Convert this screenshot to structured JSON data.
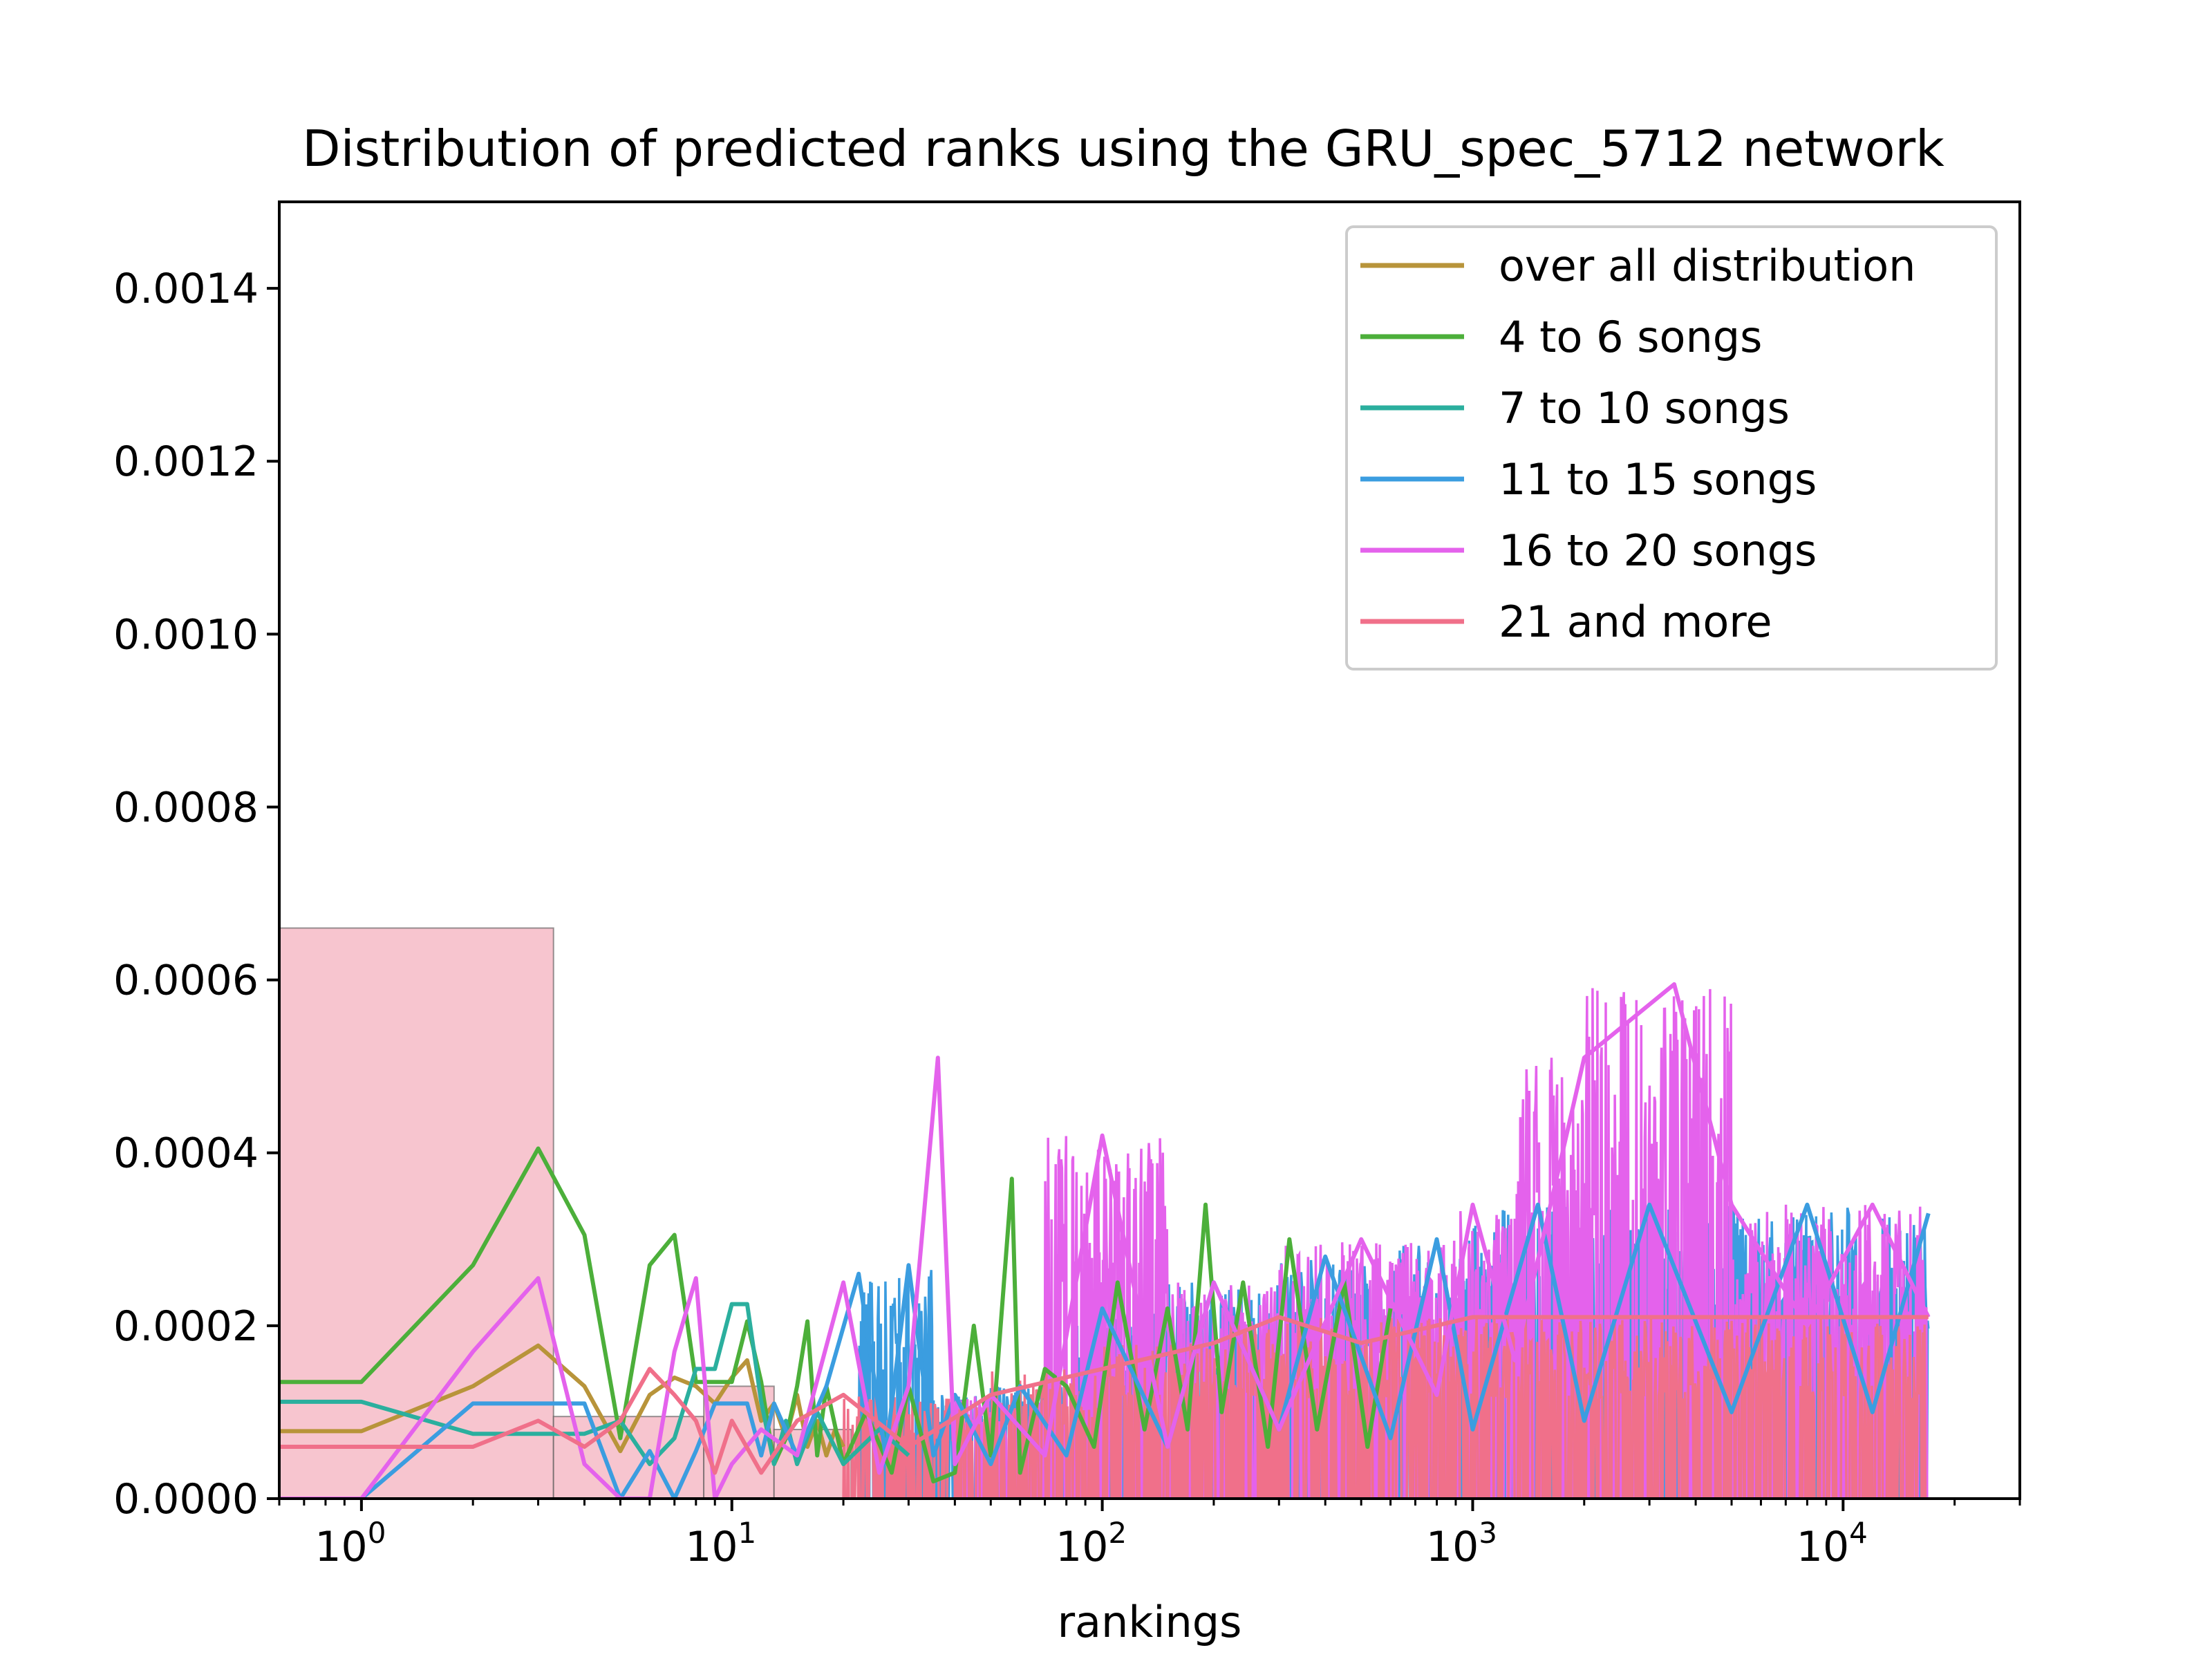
{
  "chart_data": {
    "type": "line",
    "title": "Distribution of predicted ranks using the GRU_spec_5712 network",
    "xlabel": "rankings",
    "ylabel": "",
    "xscale": "log",
    "xlim": [
      0.6,
      30000
    ],
    "ylim": [
      0,
      0.0015
    ],
    "yticks": [
      "0.0000",
      "0.0002",
      "0.0004",
      "0.0006",
      "0.0008",
      "0.0010",
      "0.0012",
      "0.0014"
    ],
    "xticks": [
      {
        "base": "10",
        "exp": "0"
      },
      {
        "base": "10",
        "exp": "1"
      },
      {
        "base": "10",
        "exp": "2"
      },
      {
        "base": "10",
        "exp": "3"
      },
      {
        "base": "10",
        "exp": "4"
      }
    ],
    "legend": {
      "location": "upper right"
    },
    "histogram": {
      "color": "#f7c5cf",
      "bins": [
        {
          "x0": 0.6,
          "x1": 3.3,
          "value": 0.00066
        },
        {
          "x0": 3.3,
          "x1": 8.4,
          "value": 9.5e-05
        },
        {
          "x0": 8.4,
          "x1": 13.0,
          "value": 0.00013
        },
        {
          "x0": 13.0,
          "x1": 21.0,
          "value": 8e-05
        }
      ]
    },
    "series": [
      {
        "name": "over all distribution",
        "color": "#b8943a",
        "x": [
          0.6,
          1,
          2,
          3,
          4,
          5,
          6,
          7,
          8,
          9,
          10,
          11,
          12,
          13,
          14,
          15,
          16,
          17,
          18,
          19,
          20
        ],
        "values": [
          7.8e-05,
          7.8e-05,
          0.00013,
          0.000177,
          0.00013,
          5.5e-05,
          0.00012,
          0.00014,
          0.00013,
          0.00011,
          0.00014,
          0.00016,
          9e-05,
          0.00011,
          7e-05,
          0.00012,
          6e-05,
          9e-05,
          5e-05,
          8e-05,
          6e-05
        ]
      },
      {
        "name": "4 to 6 songs",
        "color": "#4caf3a",
        "x": [
          0.6,
          1,
          2,
          3,
          4,
          5,
          6,
          7,
          8,
          9,
          10,
          11,
          12,
          13,
          14,
          15,
          16,
          17,
          18,
          20,
          23,
          27,
          30,
          35,
          40,
          45,
          50,
          57,
          60,
          70,
          80,
          95,
          110,
          130,
          150,
          170,
          190,
          210,
          240,
          280,
          320,
          380,
          450,
          520,
          600
        ],
        "values": [
          0.000135,
          0.000135,
          0.00027,
          0.000405,
          0.000305,
          7e-05,
          0.00027,
          0.000305,
          0.000135,
          0.000135,
          0.000135,
          0.000205,
          0.000135,
          4e-05,
          7e-05,
          0.00013,
          0.000205,
          5e-05,
          0.00013,
          4e-05,
          0.0001,
          3e-05,
          0.00013,
          2e-05,
          3e-05,
          0.0002,
          5e-05,
          0.00037,
          3e-05,
          0.00015,
          0.00013,
          6e-05,
          0.00025,
          8e-05,
          0.00022,
          8e-05,
          0.00034,
          0.0001,
          0.00025,
          6e-05,
          0.0003,
          8e-05,
          0.00025,
          6e-05,
          0.00022
        ]
      },
      {
        "name": "7 to 10 songs",
        "color": "#2baf9e",
        "x": [
          0.6,
          1,
          2,
          3,
          4,
          5,
          6,
          7,
          8,
          9,
          10,
          11,
          12,
          13,
          14,
          15,
          17,
          20,
          25,
          30
        ],
        "values": [
          0.000112,
          0.000112,
          7.5e-05,
          7.5e-05,
          7.5e-05,
          9e-05,
          4e-05,
          7e-05,
          0.00015,
          0.00015,
          0.000225,
          0.000225,
          0.000112,
          4e-05,
          9e-05,
          4e-05,
          0.0001,
          4e-05,
          8e-05,
          5e-05
        ]
      },
      {
        "name": "11 to 15 songs",
        "color": "#3b9de0",
        "x": [
          0.6,
          1,
          2,
          3,
          4,
          5,
          6,
          7,
          8,
          9,
          10,
          11,
          12,
          13,
          15,
          18,
          22,
          26,
          30,
          35,
          40,
          50,
          60,
          80,
          100,
          150,
          200,
          300,
          400,
          600,
          800,
          1000,
          1500,
          2000,
          3000,
          5000,
          8000,
          12000,
          17000
        ],
        "values": [
          0,
          0,
          0.00011,
          0.00011,
          0.00011,
          0,
          5.5e-05,
          0,
          5.5e-05,
          0.00011,
          0.00011,
          0.00011,
          5e-05,
          0.00011,
          5e-05,
          0.00013,
          0.00026,
          5e-05,
          0.00027,
          5e-05,
          0.00012,
          4e-05,
          0.00013,
          5e-05,
          0.00022,
          6e-05,
          0.00025,
          8e-05,
          0.00028,
          7e-05,
          0.0003,
          8e-05,
          0.00034,
          9e-05,
          0.00034,
          0.0001,
          0.00034,
          0.0001,
          0.00033
        ]
      },
      {
        "name": "16 to 20 songs",
        "color": "#e462ec",
        "x": [
          0.6,
          1,
          2,
          3,
          4,
          5,
          6,
          7,
          8,
          9,
          10,
          12,
          15,
          20,
          25,
          30,
          36,
          40,
          50,
          70,
          100,
          150,
          200,
          300,
          500,
          800,
          1000,
          1300,
          2000,
          3500,
          5000,
          8000,
          12000,
          17000
        ],
        "values": [
          0,
          0,
          0.00017,
          0.000255,
          4e-05,
          0,
          0,
          0.00017,
          0.000255,
          0,
          4e-05,
          8e-05,
          5e-05,
          0.00025,
          3e-05,
          0.00013,
          0.00051,
          4e-05,
          0.00012,
          5e-05,
          0.00042,
          6e-05,
          0.00025,
          8e-05,
          0.0003,
          0.00012,
          0.00034,
          0.00016,
          0.00051,
          0.000595,
          0.00034,
          0.0002,
          0.00034,
          0.00021
        ]
      },
      {
        "name": "21 and more",
        "color": "#f0708a",
        "x": [
          0.6,
          1,
          2,
          3,
          4,
          5,
          6,
          7,
          8,
          9,
          10,
          12,
          15,
          20,
          30,
          50,
          100,
          200,
          300,
          500,
          1000,
          2000,
          5000,
          10000,
          17000
        ],
        "values": [
          6e-05,
          6e-05,
          6e-05,
          9e-05,
          6e-05,
          9e-05,
          0.00015,
          0.00012,
          9e-05,
          3e-05,
          9e-05,
          3e-05,
          9e-05,
          0.00012,
          6e-05,
          0.00012,
          0.00015,
          0.00018,
          0.00021,
          0.00018,
          0.00021,
          0.00021,
          0.00021,
          0.00021,
          0.00021
        ]
      }
    ]
  }
}
